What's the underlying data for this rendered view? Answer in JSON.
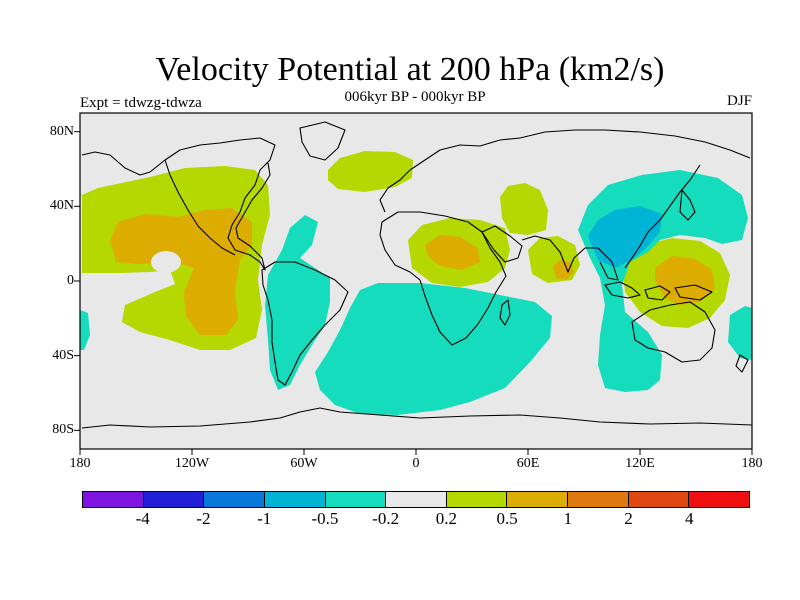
{
  "title": "Velocity Potential at 200 hPa (km2/s)",
  "subtitle": "006kyr BP - 000kyr BP",
  "experiment": "Expt = tdwzg-tdwza",
  "season": "DJF",
  "lat_ticks": [
    {
      "value": 80,
      "label": "80N"
    },
    {
      "value": 40,
      "label": "40N"
    },
    {
      "value": 0,
      "label": "0"
    },
    {
      "value": -40,
      "label": "40S"
    },
    {
      "value": -80,
      "label": "80S"
    }
  ],
  "lon_ticks": [
    {
      "value": -180,
      "label": "180"
    },
    {
      "value": -120,
      "label": "120W"
    },
    {
      "value": -60,
      "label": "60W"
    },
    {
      "value": 0,
      "label": "0"
    },
    {
      "value": 60,
      "label": "60E"
    },
    {
      "value": 120,
      "label": "120E"
    },
    {
      "value": 180,
      "label": "180"
    }
  ],
  "colors": {
    "background": "#e8e8e8",
    "coast": "#000000"
  },
  "colorbar": {
    "colors": [
      "#7e14e0",
      "#2020d8",
      "#0a78d8",
      "#00b4d6",
      "#14dcbc",
      "#e8e8e8",
      "#b4d800",
      "#dcac00",
      "#dc7a10",
      "#e04810",
      "#ee1010"
    ],
    "labels": [
      "-4",
      "-2",
      "-1",
      "-0.5",
      "-0.2",
      "0.2",
      "0.5",
      "1",
      "2",
      "4"
    ]
  }
}
